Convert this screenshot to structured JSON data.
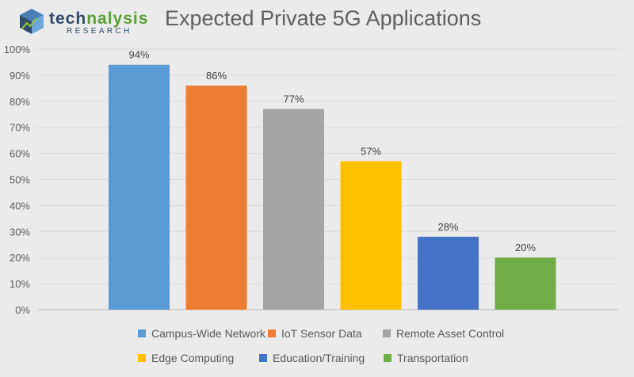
{
  "logo": {
    "word_main": "tech",
    "word_accent": "nalysis",
    "sub": "RESEARCH"
  },
  "chart_data": {
    "type": "bar",
    "title": "Expected Private 5G Applications",
    "xlabel": "",
    "ylabel": "",
    "ylim": [
      0,
      100
    ],
    "yticks": [
      "0%",
      "10%",
      "20%",
      "30%",
      "40%",
      "50%",
      "60%",
      "70%",
      "80%",
      "90%",
      "100%"
    ],
    "grid": true,
    "legend_position": "bottom",
    "categories": [
      "Campus-Wide Network",
      "IoT Sensor Data",
      "Remote Asset Control",
      "Edge Computing",
      "Education/Training",
      "Transportation"
    ],
    "values": [
      94,
      86,
      77,
      57,
      28,
      20
    ],
    "labels": [
      "94%",
      "86%",
      "77%",
      "57%",
      "28%",
      "20%"
    ],
    "colors": [
      "#5b9bd5",
      "#ed7d31",
      "#a5a5a5",
      "#ffc000",
      "#4472c4",
      "#70ad47"
    ]
  }
}
